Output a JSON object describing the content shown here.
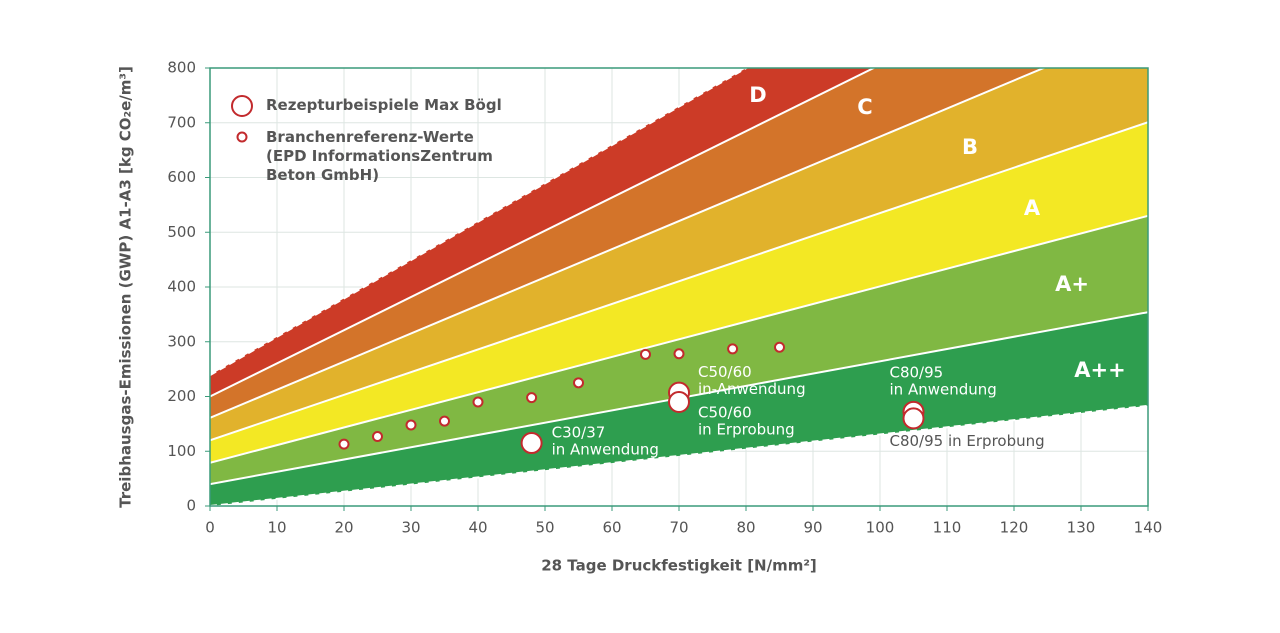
{
  "chart_data": {
    "type": "band-scatter",
    "xlabel": "28 Tage Druckfestigkeit [N/mm²]",
    "ylabel": "Treibhausgas-Emissionen (GWP) A1-A3 [kg CO₂e/m³]",
    "xlim": [
      0,
      140
    ],
    "ylim": [
      0,
      800
    ],
    "xticks": [
      0,
      10,
      20,
      30,
      40,
      50,
      60,
      70,
      80,
      90,
      100,
      110,
      120,
      130,
      140
    ],
    "yticks": [
      0,
      100,
      200,
      300,
      400,
      500,
      600,
      700,
      800
    ],
    "grid": true,
    "boundaries": [
      {
        "x": [
          0,
          140
        ],
        "values": [
          0,
          183
        ],
        "dashed": true
      },
      {
        "x": [
          0,
          140
        ],
        "values": [
          40,
          354
        ],
        "dashed": false
      },
      {
        "x": [
          0,
          140
        ],
        "values": [
          79,
          530
        ],
        "dashed": false
      },
      {
        "x": [
          0,
          140
        ],
        "values": [
          120,
          701
        ],
        "dashed": false
      },
      {
        "x": [
          0,
          140
        ],
        "values": [
          161,
          880
        ],
        "dashed": false
      },
      {
        "x": [
          0,
          140
        ],
        "values": [
          200,
          1048
        ],
        "dashed": false
      },
      {
        "x": [
          0,
          140
        ],
        "values": [
          239,
          1220
        ],
        "dashed": true
      }
    ],
    "bands": [
      {
        "name": "A++",
        "color": "#2e9e4f"
      },
      {
        "name": "A+",
        "color": "#80b843"
      },
      {
        "name": "A",
        "color": "#f3e824"
      },
      {
        "name": "B",
        "color": "#e1b22c"
      },
      {
        "name": "C",
        "color": "#d3742a"
      },
      {
        "name": "D",
        "color": "#cc3b27"
      }
    ],
    "series": [
      {
        "name": "Rezepturbeispiele Max Bögl",
        "color": "#c22a2d",
        "size": "large",
        "x": [
          48,
          70,
          70,
          105,
          105
        ],
        "values": [
          115,
          207,
          190,
          172,
          160
        ],
        "point_labels": [
          [
            "C30/37",
            "in Anwendung"
          ],
          [
            "C50/60",
            "in-Anwendung"
          ],
          [
            "C50/60",
            "in Erprobung"
          ],
          [
            "C80/95",
            "in Anwendung"
          ],
          [
            "C80/95 in Erprobung"
          ]
        ],
        "label_colors": [
          "#ffffff",
          "#ffffff",
          "#ffffff",
          "#ffffff",
          "#555555"
        ]
      },
      {
        "name": "Branchenreferenz-Werte (EPD InformationsZentrum Beton GmbH)",
        "color": "#c22a2d",
        "size": "small",
        "x": [
          20,
          25,
          30,
          35,
          40,
          48,
          55,
          65,
          70,
          78,
          85
        ],
        "values": [
          113,
          127,
          148,
          155,
          190,
          198,
          225,
          277,
          278,
          287,
          290
        ]
      }
    ]
  }
}
